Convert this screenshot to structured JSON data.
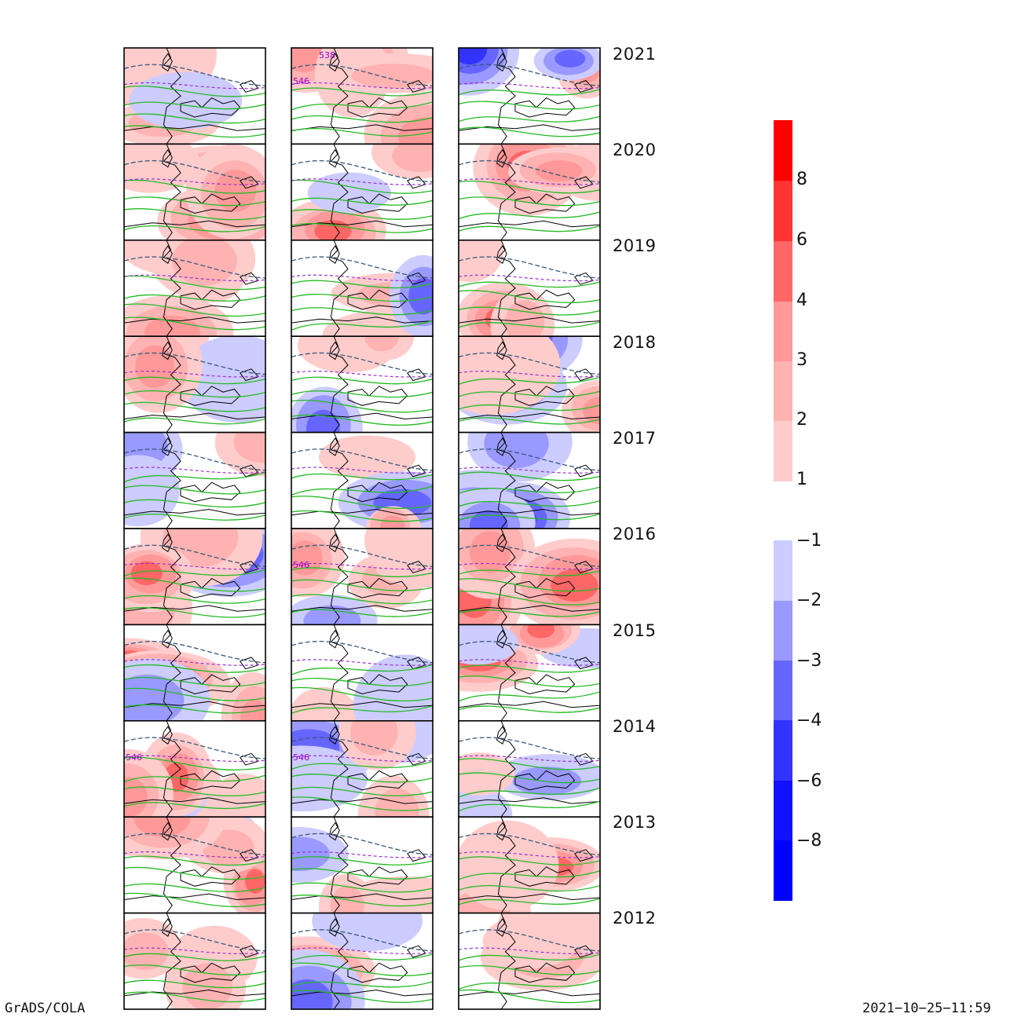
{
  "years": [
    "2021",
    "2020",
    "2019",
    "2018",
    "2017",
    "2016",
    "2015",
    "2014",
    "2013",
    "2012"
  ],
  "contour_labels": [
    {
      "year_index": 0,
      "column": 1,
      "texts": [
        "538",
        "546"
      ]
    },
    {
      "year_index": 5,
      "column": 1,
      "texts": [
        "546"
      ]
    },
    {
      "year_index": 7,
      "column": 0,
      "texts": [
        "546"
      ]
    },
    {
      "year_index": 7,
      "column": 1,
      "texts": [
        "546"
      ]
    }
  ],
  "colorbar_positive": {
    "colors": [
      "#ffcccc",
      "#ffb2b2",
      "#ff9999",
      "#ff6666",
      "#ff3333",
      "#ff0000"
    ],
    "labels": [
      "8",
      "6",
      "4",
      "3",
      "2",
      "1"
    ]
  },
  "colorbar_negative": {
    "colors": [
      "#ccccff",
      "#9999ff",
      "#6666ff",
      "#3333ff",
      "#1111ff",
      "#0000ff"
    ],
    "labels": [
      "−1",
      "−2",
      "−3",
      "−4",
      "−6",
      "−8"
    ]
  },
  "footer": {
    "left": "GrADS/COLA",
    "right": "2021−10−25−11:59"
  }
}
